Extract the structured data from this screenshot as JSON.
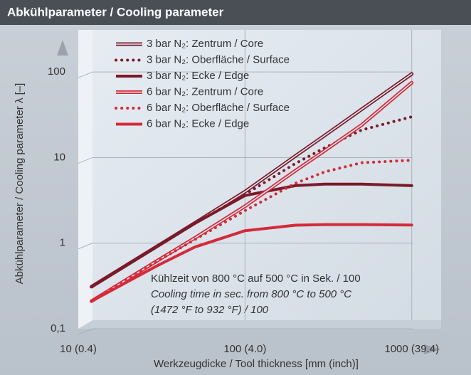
{
  "chart_data": {
    "type": "line",
    "title": "Abkühlparameter / Cooling parameter",
    "xlabel": "Werkzeugdicke / Tool thickness [mm (inch)]",
    "ylabel": "Abkühlparameter / Cooling parameter λ [–]",
    "annotation": [
      "Kühlzeit von 800 °C auf 500 °C in Sek. / 100",
      "Cooling time in sec. from 800 °C to 500 °C",
      "(1472 °F to 932 °F) / 100"
    ],
    "log_x": true,
    "log_y": true,
    "grid": true,
    "xlim": [
      10,
      1500
    ],
    "ylim": [
      0.1,
      220
    ],
    "xticks": [
      {
        "value": 10,
        "label": "10 (0.4)"
      },
      {
        "value": 100,
        "label": "100 (4.0)"
      },
      {
        "value": 1000,
        "label": "1000 (39.4)"
      }
    ],
    "yticks": [
      {
        "value": 0.1,
        "label": "0,1"
      },
      1,
      10,
      100
    ],
    "x": [
      12,
      30,
      50,
      100,
      200,
      300,
      500,
      1000
    ],
    "series": [
      {
        "name": "3 bar N₂: Zentrum / Core",
        "color": "#7a1a2a",
        "line_style": "double",
        "values": [
          0.31,
          0.93,
          1.72,
          4,
          10.4,
          18.1,
          36.6,
          95
        ]
      },
      {
        "name": "3 bar N₂: Oberfläche / Surface",
        "color": "#7a1a2a",
        "line_style": "dotted",
        "values": [
          0.31,
          0.93,
          1.7,
          3.7,
          8.5,
          13,
          21,
          30
        ]
      },
      {
        "name": "3 bar N₂: Ecke / Edge",
        "color": "#7a1a2a",
        "line_style": "solid",
        "values": [
          0.31,
          0.93,
          1.7,
          3.6,
          4.7,
          4.9,
          4.9,
          4.7
        ]
      },
      {
        "name": "6 bar N₂: Zentrum / Core",
        "color": "#d42a3a",
        "line_style": "double",
        "values": [
          0.21,
          0.63,
          1.15,
          2.7,
          7,
          12,
          24,
          75
        ]
      },
      {
        "name": "6 bar N₂: Oberfläche / Surface",
        "color": "#d42a3a",
        "line_style": "dotted",
        "values": [
          0.21,
          0.62,
          1.1,
          2.4,
          5,
          6.8,
          8.7,
          9.3
        ]
      },
      {
        "name": "6 bar N₂: Ecke / Edge",
        "color": "#d42a3a",
        "line_style": "solid",
        "values": [
          0.21,
          0.55,
          0.9,
          1.4,
          1.62,
          1.65,
          1.65,
          1.63
        ]
      }
    ]
  }
}
